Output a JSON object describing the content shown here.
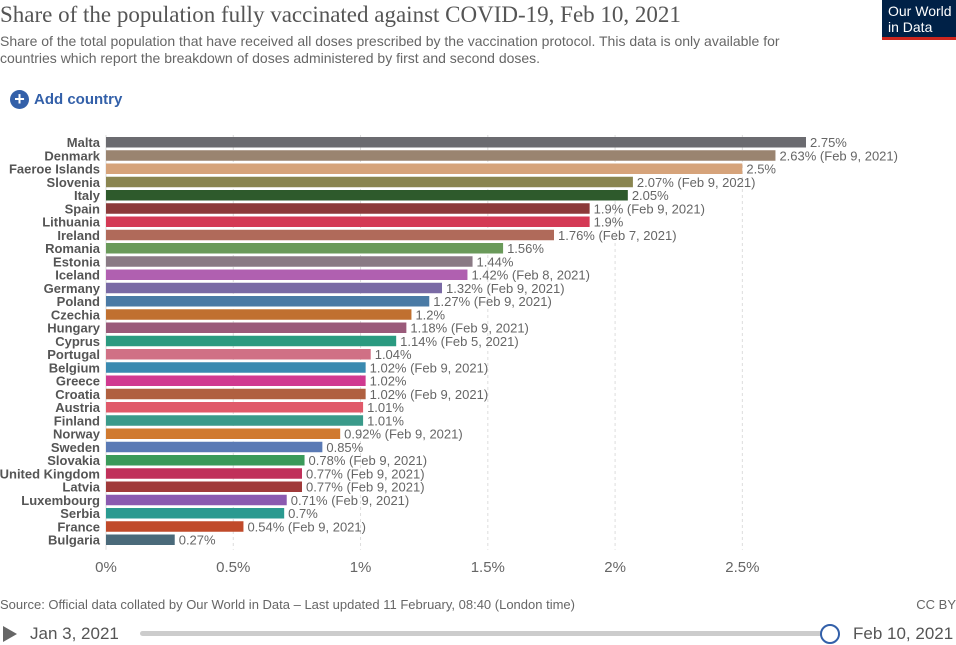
{
  "header": {
    "title": "Share of the population fully vaccinated against COVID-19, Feb 10, 2021",
    "subtitle": "Share of the total population that have received all doses prescribed by the vaccination protocol. This data is only available for countries which report the breakdown of doses administered by first and second doses.",
    "logo_text": "Our World in Data",
    "add_country_label": "Add country"
  },
  "footer": {
    "source": "Source: Official data collated by Our World in Data – Last updated 11 February, 08:40 (London time)",
    "license": "CC BY"
  },
  "timeline": {
    "start_label": "Jan 3, 2021",
    "end_label": "Feb 10, 2021",
    "position": 1.0
  },
  "chart_data": {
    "type": "bar",
    "orientation": "horizontal",
    "xlim": [
      0,
      2.75
    ],
    "x_ticks": [
      {
        "value": 0,
        "label": "0%"
      },
      {
        "value": 0.5,
        "label": "0.5%"
      },
      {
        "value": 1,
        "label": "1%"
      },
      {
        "value": 1.5,
        "label": "1.5%"
      },
      {
        "value": 2,
        "label": "2%"
      },
      {
        "value": 2.5,
        "label": "2.5%"
      }
    ],
    "grid": "vertical dashed",
    "bars": [
      {
        "name": "Malta",
        "value": 2.75,
        "label": "2.75%",
        "color": "#6b6b70"
      },
      {
        "name": "Denmark",
        "value": 2.63,
        "label": "2.63% (Feb 9, 2021)",
        "color": "#9a8470"
      },
      {
        "name": "Faeroe Islands",
        "value": 2.5,
        "label": "2.5%",
        "color": "#d6a37a"
      },
      {
        "name": "Slovenia",
        "value": 2.07,
        "label": "2.07% (Feb 9, 2021)",
        "color": "#8a8550"
      },
      {
        "name": "Italy",
        "value": 2.05,
        "label": "2.05%",
        "color": "#2e5a2c"
      },
      {
        "name": "Spain",
        "value": 1.9,
        "label": "1.9% (Feb 9, 2021)",
        "color": "#8c3a3a"
      },
      {
        "name": "Lithuania",
        "value": 1.9,
        "label": "1.9%",
        "color": "#d43a55"
      },
      {
        "name": "Ireland",
        "value": 1.76,
        "label": "1.76% (Feb 7, 2021)",
        "color": "#b06a5a"
      },
      {
        "name": "Romania",
        "value": 1.56,
        "label": "1.56%",
        "color": "#6a9a5a"
      },
      {
        "name": "Estonia",
        "value": 1.44,
        "label": "1.44%",
        "color": "#8a7a85"
      },
      {
        "name": "Iceland",
        "value": 1.42,
        "label": "1.42% (Feb 8, 2021)",
        "color": "#b060b0"
      },
      {
        "name": "Germany",
        "value": 1.32,
        "label": "1.32% (Feb 9, 2021)",
        "color": "#7a6aa5"
      },
      {
        "name": "Poland",
        "value": 1.27,
        "label": "1.27% (Feb 9, 2021)",
        "color": "#4a7aa5"
      },
      {
        "name": "Czechia",
        "value": 1.2,
        "label": "1.2%",
        "color": "#c07030"
      },
      {
        "name": "Hungary",
        "value": 1.18,
        "label": "1.18% (Feb 9, 2021)",
        "color": "#9a5a7a"
      },
      {
        "name": "Cyprus",
        "value": 1.14,
        "label": "1.14% (Feb 5, 2021)",
        "color": "#2a9a80"
      },
      {
        "name": "Portugal",
        "value": 1.04,
        "label": "1.04%",
        "color": "#d07085"
      },
      {
        "name": "Belgium",
        "value": 1.02,
        "label": "1.02% (Feb 9, 2021)",
        "color": "#3a8ab0"
      },
      {
        "name": "Greece",
        "value": 1.02,
        "label": "1.02%",
        "color": "#d03a90"
      },
      {
        "name": "Croatia",
        "value": 1.02,
        "label": "1.02% (Feb 9, 2021)",
        "color": "#b06040"
      },
      {
        "name": "Austria",
        "value": 1.01,
        "label": "1.01%",
        "color": "#e05a6a"
      },
      {
        "name": "Finland",
        "value": 1.01,
        "label": "1.01%",
        "color": "#3a9a8a"
      },
      {
        "name": "Norway",
        "value": 0.92,
        "label": "0.92% (Feb 9, 2021)",
        "color": "#d07a30"
      },
      {
        "name": "Sweden",
        "value": 0.85,
        "label": "0.85%",
        "color": "#5a7ab5"
      },
      {
        "name": "Slovakia",
        "value": 0.78,
        "label": "0.78% (Feb 9, 2021)",
        "color": "#3a9a5a"
      },
      {
        "name": "United Kingdom",
        "value": 0.77,
        "label": "0.77% (Feb 9, 2021)",
        "color": "#c0305a"
      },
      {
        "name": "Latvia",
        "value": 0.77,
        "label": "0.77% (Feb 9, 2021)",
        "color": "#a03a3a"
      },
      {
        "name": "Luxembourg",
        "value": 0.71,
        "label": "0.71% (Feb 9, 2021)",
        "color": "#8a5ab0"
      },
      {
        "name": "Serbia",
        "value": 0.7,
        "label": "0.7%",
        "color": "#2a9a90"
      },
      {
        "name": "France",
        "value": 0.54,
        "label": "0.54% (Feb 9, 2021)",
        "color": "#c04a2a"
      },
      {
        "name": "Bulgaria",
        "value": 0.27,
        "label": "0.27%",
        "color": "#4a6a7a"
      }
    ]
  }
}
